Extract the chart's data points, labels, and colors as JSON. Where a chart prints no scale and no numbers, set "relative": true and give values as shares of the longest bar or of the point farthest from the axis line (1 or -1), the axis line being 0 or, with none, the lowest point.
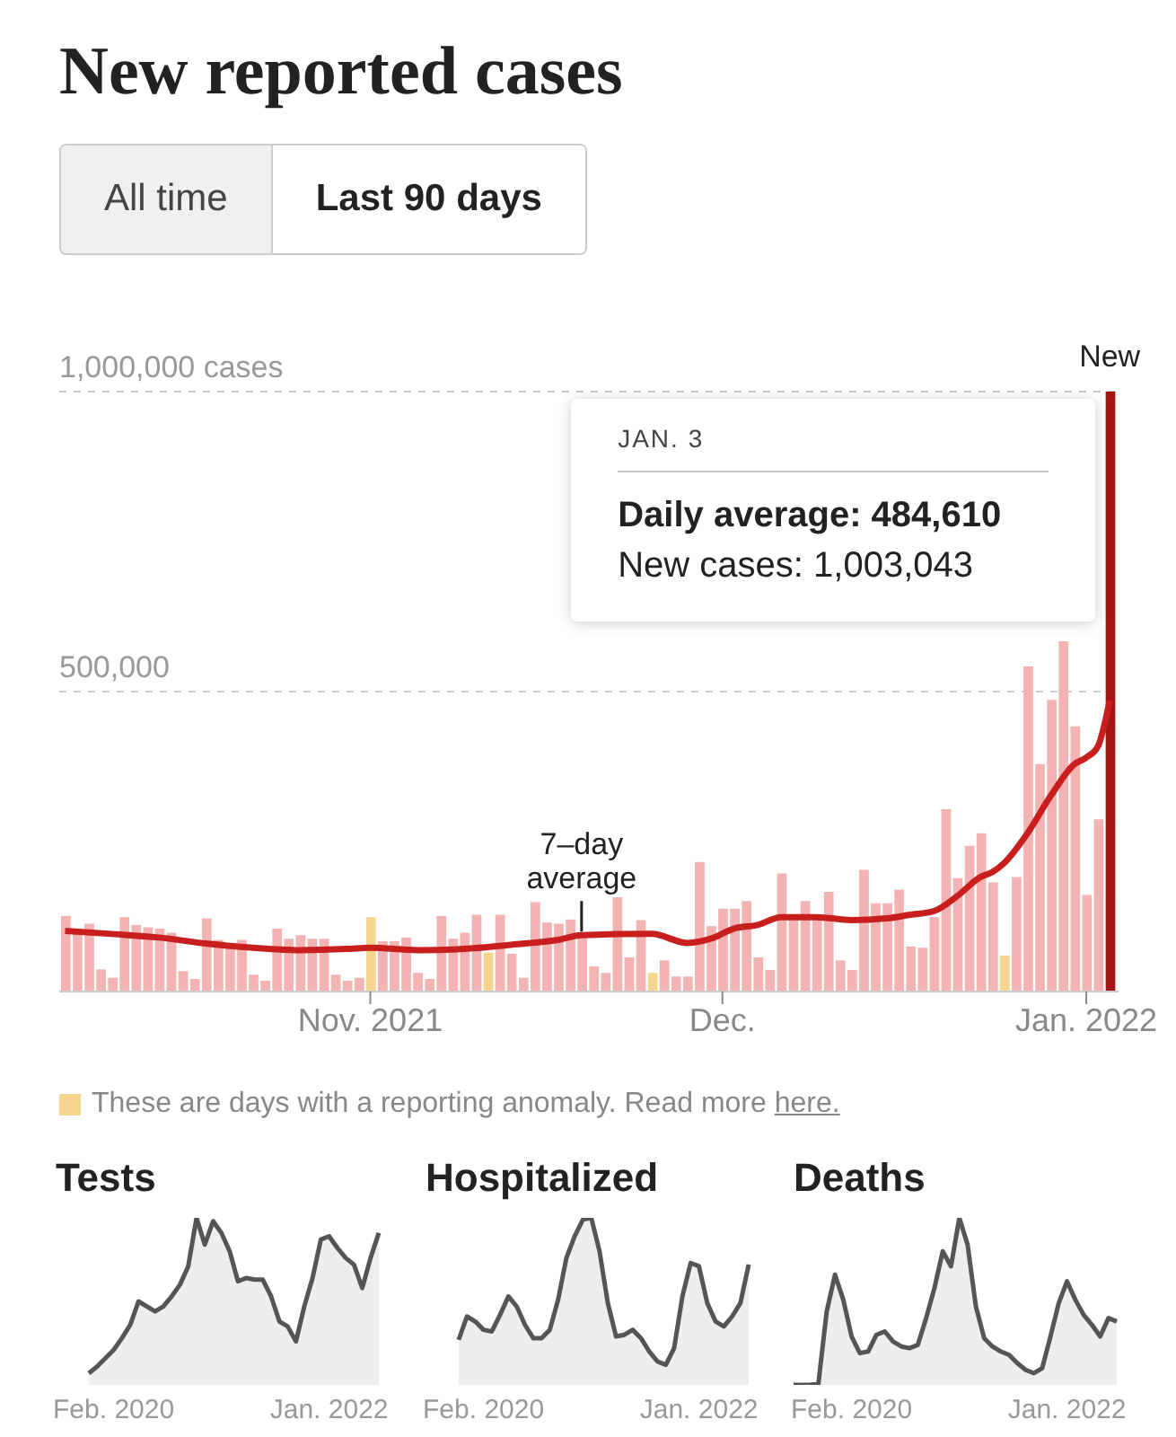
{
  "chart_data": [
    {
      "type": "bar",
      "title": "New reported cases",
      "x": [
        "2021-10-06",
        "2021-10-07",
        "2021-10-08",
        "2021-10-09",
        "2021-10-10",
        "2021-10-11",
        "2021-10-12",
        "2021-10-13",
        "2021-10-14",
        "2021-10-15",
        "2021-10-16",
        "2021-10-17",
        "2021-10-18",
        "2021-10-19",
        "2021-10-20",
        "2021-10-21",
        "2021-10-22",
        "2021-10-23",
        "2021-10-24",
        "2021-10-25",
        "2021-10-26",
        "2021-10-27",
        "2021-10-28",
        "2021-10-29",
        "2021-10-30",
        "2021-10-31",
        "2021-11-01",
        "2021-11-02",
        "2021-11-03",
        "2021-11-04",
        "2021-11-05",
        "2021-11-06",
        "2021-11-07",
        "2021-11-08",
        "2021-11-09",
        "2021-11-10",
        "2021-11-11",
        "2021-11-12",
        "2021-11-13",
        "2021-11-14",
        "2021-11-15",
        "2021-11-16",
        "2021-11-17",
        "2021-11-18",
        "2021-11-19",
        "2021-11-20",
        "2021-11-21",
        "2021-11-22",
        "2021-11-23",
        "2021-11-24",
        "2021-11-25",
        "2021-11-26",
        "2021-11-27",
        "2021-11-28",
        "2021-11-29",
        "2021-11-30",
        "2021-12-01",
        "2021-12-02",
        "2021-12-03",
        "2021-12-04",
        "2021-12-05",
        "2021-12-06",
        "2021-12-07",
        "2021-12-08",
        "2021-12-09",
        "2021-12-10",
        "2021-12-11",
        "2021-12-12",
        "2021-12-13",
        "2021-12-14",
        "2021-12-15",
        "2021-12-16",
        "2021-12-17",
        "2021-12-18",
        "2021-12-19",
        "2021-12-20",
        "2021-12-21",
        "2021-12-22",
        "2021-12-23",
        "2021-12-24",
        "2021-12-25",
        "2021-12-26",
        "2021-12-27",
        "2021-12-28",
        "2021-12-29",
        "2021-12-30",
        "2021-12-31",
        "2022-01-01",
        "2022-01-02",
        "2022-01-03"
      ],
      "series": [
        {
          "colors": [
            "#f3b3b3",
            "#f3b3b3",
            "#f3b3b3",
            "#f3b3b3",
            "#f3b3b3",
            "#f3b3b3",
            "#f3b3b3",
            "#f3b3b3",
            "#f3b3b3",
            "#f3b3b3",
            "#f3b3b3",
            "#f3b3b3",
            "#f3b3b3",
            "#f3b3b3",
            "#f3b3b3",
            "#f3b3b3",
            "#f3b3b3",
            "#f3b3b3",
            "#f3b3b3",
            "#f3b3b3",
            "#f3b3b3",
            "#f3b3b3",
            "#f3b3b3",
            "#f3b3b3",
            "#f3b3b3",
            "#f3b3b3",
            "#f8d58e",
            "#f3b3b3",
            "#f3b3b3",
            "#f3b3b3",
            "#f3b3b3",
            "#f3b3b3",
            "#f3b3b3",
            "#f3b3b3",
            "#f3b3b3",
            "#f3b3b3",
            "#f8d58e",
            "#f3b3b3",
            "#f3b3b3",
            "#f3b3b3",
            "#f3b3b3",
            "#f3b3b3",
            "#f3b3b3",
            "#f3b3b3",
            "#f3b3b3",
            "#f3b3b3",
            "#f3b3b3",
            "#f3b3b3",
            "#f3b3b3",
            "#f3b3b3",
            "#f8d58e",
            "#f3b3b3",
            "#f3b3b3",
            "#f3b3b3",
            "#f3b3b3",
            "#f3b3b3",
            "#f3b3b3",
            "#f3b3b3",
            "#f3b3b3",
            "#f3b3b3",
            "#f3b3b3",
            "#f3b3b3",
            "#f3b3b3",
            "#f3b3b3",
            "#f3b3b3",
            "#f3b3b3",
            "#f3b3b3",
            "#f3b3b3",
            "#f3b3b3",
            "#f3b3b3",
            "#f3b3b3",
            "#f3b3b3",
            "#f3b3b3",
            "#f3b3b3",
            "#f3b3b3",
            "#f3b3b3",
            "#f3b3b3",
            "#f3b3b3",
            "#f3b3b3",
            "#f3b3b3",
            "#f8d58e",
            "#f3b3b3",
            "#f3b3b3",
            "#f3b3b3",
            "#f3b3b3",
            "#f3b3b3",
            "#f3b3b3",
            "#f3b3b3",
            "#f3b3b3",
            "#a31515"
          ],
          "values": [
            126000,
            102000,
            113000,
            37000,
            23000,
            124000,
            111000,
            107000,
            105000,
            98000,
            34000,
            21000,
            122000,
            86000,
            73000,
            86000,
            28000,
            18000,
            105000,
            88000,
            94000,
            88000,
            88000,
            28000,
            18000,
            23000,
            124000,
            84000,
            84000,
            90000,
            31000,
            21000,
            126000,
            88000,
            98000,
            128000,
            65000,
            128000,
            63000,
            23000,
            149000,
            115000,
            113000,
            120000,
            96000,
            42000,
            31000,
            157000,
            57000,
            119000,
            31000,
            52000,
            25000,
            25000,
            216000,
            109000,
            138000,
            138000,
            151000,
            57000,
            36000,
            197000,
            126000,
            151000,
            128000,
            166000,
            52000,
            36000,
            203000,
            147000,
            147000,
            170000,
            75000,
            73000,
            124000,
            304000,
            189000,
            243000,
            264000,
            182000,
            60000,
            191000,
            542000,
            379000,
            486000,
            584000,
            442000,
            161000,
            287000,
            1000000
          ]
        },
        {
          "type": "line",
          "name": "7–day average",
          "color": "#c81e1e",
          "x": [
            "2021-10-06",
            "2021-10-10",
            "2021-10-14",
            "2021-10-18",
            "2021-10-22",
            "2021-10-26",
            "2021-10-30",
            "2021-11-01",
            "2021-11-05",
            "2021-11-09",
            "2021-11-13",
            "2021-11-17",
            "2021-11-19",
            "2021-11-25",
            "2021-11-28",
            "2021-11-30",
            "2021-12-02",
            "2021-12-04",
            "2021-12-06",
            "2021-12-09",
            "2021-12-12",
            "2021-12-15",
            "2021-12-17",
            "2021-12-19",
            "2021-12-21",
            "2021-12-23",
            "2021-12-24",
            "2021-12-25",
            "2021-12-27",
            "2021-12-29",
            "2021-12-31",
            "2022-01-01",
            "2022-01-02",
            "2022-01-03"
          ],
          "values": [
            101000,
            96000,
            90000,
            80000,
            73000,
            69000,
            71000,
            73000,
            69000,
            71000,
            78000,
            86000,
            94000,
            96000,
            81000,
            88000,
            105000,
            111000,
            124000,
            124000,
            119000,
            122000,
            128000,
            134000,
            159000,
            191000,
            199000,
            214000,
            264000,
            327000,
            379000,
            390000,
            409000,
            485000
          ]
        }
      ],
      "xlim": [
        "2021-10-05T12:00",
        "2022-01-03T18:00"
      ],
      "xticks": [
        {
          "value": "2021-11-01",
          "label": "Nov. 2021"
        },
        {
          "value": "2021-12-01",
          "label": "Dec."
        },
        {
          "value": "2022-01-01",
          "label": "Jan. 2022"
        }
      ],
      "ylim": [
        0,
        1000000
      ],
      "yticks": [
        {
          "value": 500000,
          "label": "500,000"
        },
        {
          "value": 1000000,
          "label": "1,000,000 cases"
        }
      ],
      "grid": "y",
      "annotations": [
        "All time",
        "Last 90 days",
        {
          "text": "New",
          "x": "2022-01-03",
          "y": 1000000
        },
        "JAN. 3",
        "Daily average: 484,610",
        "New cases: 1,003,043",
        "These are days with a reporting anomaly. Read more here."
      ]
    },
    {
      "type": "area",
      "title": "Tests",
      "relative": true,
      "categories": [
        null,
        null,
        null,
        null,
        null,
        null,
        null,
        "Feb. 2020",
        null,
        null,
        null,
        null,
        null,
        null,
        null,
        null,
        null,
        null,
        null,
        null,
        null,
        null,
        null,
        null,
        null,
        null,
        null,
        null,
        null,
        null,
        null,
        null,
        null,
        "Jan. 2022",
        null,
        null,
        null,
        null,
        null,
        null
      ],
      "series": [
        {
          "color": "#555555",
          "values": [
            null,
            null,
            null,
            null,
            0.07,
            0.11,
            0.16,
            0.21,
            0.28,
            0.36,
            0.5,
            0.47,
            0.44,
            0.47,
            0.53,
            0.6,
            0.71,
            1.0,
            0.84,
            0.98,
            0.91,
            0.8,
            0.62,
            0.64,
            0.63,
            0.63,
            0.53,
            0.38,
            0.35,
            0.26,
            0.47,
            0.64,
            0.87,
            0.89,
            0.82,
            0.76,
            0.72,
            0.58,
            0.76,
            0.91
          ]
        }
      ]
    },
    {
      "type": "area",
      "title": "Hospitalized",
      "relative": true,
      "categories": [
        null,
        null,
        null,
        null,
        null,
        null,
        null,
        "Feb. 2020",
        null,
        null,
        null,
        null,
        null,
        null,
        null,
        null,
        null,
        null,
        null,
        null,
        null,
        null,
        null,
        null,
        null,
        null,
        null,
        null,
        null,
        null,
        null,
        null,
        null,
        "Jan. 2022",
        null,
        null,
        null,
        null,
        null,
        null
      ],
      "series": [
        {
          "color": "#555555",
          "values": [
            null,
            null,
            null,
            null,
            0.27,
            0.41,
            0.38,
            0.33,
            0.32,
            0.42,
            0.53,
            0.47,
            0.36,
            0.28,
            0.28,
            0.33,
            0.51,
            0.76,
            0.89,
            0.99,
            1.0,
            0.8,
            0.49,
            0.29,
            0.3,
            0.33,
            0.28,
            0.2,
            0.14,
            0.12,
            0.22,
            0.53,
            0.73,
            0.71,
            0.49,
            0.38,
            0.35,
            0.41,
            0.49,
            0.72
          ]
        }
      ]
    },
    {
      "type": "area",
      "title": "Deaths",
      "relative": true,
      "categories": [
        null,
        null,
        null,
        null,
        null,
        null,
        null,
        "Feb. 2020",
        null,
        null,
        null,
        null,
        null,
        null,
        null,
        null,
        null,
        null,
        null,
        null,
        null,
        null,
        null,
        null,
        null,
        null,
        null,
        null,
        null,
        null,
        null,
        null,
        null,
        "Jan. 2022",
        null,
        null,
        null,
        null,
        null,
        null
      ],
      "series": [
        {
          "color": "#555555",
          "values": [
            0,
            0,
            0,
            0.01,
            0.44,
            0.66,
            0.51,
            0.29,
            0.19,
            0.2,
            0.3,
            0.32,
            0.26,
            0.23,
            0.22,
            0.24,
            0.4,
            0.58,
            0.8,
            0.71,
            1.0,
            0.84,
            0.47,
            0.28,
            0.23,
            0.2,
            0.18,
            0.13,
            0.09,
            0.07,
            0.1,
            0.29,
            0.49,
            0.62,
            0.51,
            0.42,
            0.36,
            0.29,
            0.4,
            0.38
          ]
        }
      ]
    }
  ]
}
